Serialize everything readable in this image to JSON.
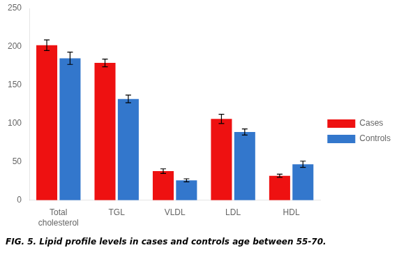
{
  "chart_data": {
    "type": "bar",
    "caption": "FIG. 5. Lipid profile levels in cases and controls age between 55-70.",
    "categories": [
      "Total\ncholesterol",
      "TGL",
      "VLDL",
      "LDL",
      "HDL"
    ],
    "series": [
      {
        "name": "Cases",
        "color": "#ee1111",
        "values": [
          202,
          179,
          38,
          106,
          32
        ],
        "errors": [
          7,
          5,
          3,
          6,
          2
        ]
      },
      {
        "name": "Controls",
        "color": "#3377cc",
        "values": [
          185,
          132,
          26,
          89,
          47
        ],
        "errors": [
          8,
          5,
          2,
          4,
          4
        ]
      }
    ],
    "ylim": [
      0,
      250
    ],
    "yticks": [
      0,
      50,
      100,
      150,
      200,
      250
    ],
    "grid": false,
    "legend": "right"
  }
}
